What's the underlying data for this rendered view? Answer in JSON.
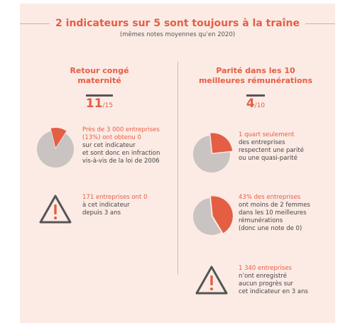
{
  "header": {
    "title": "2 indicateurs sur 5 sont toujours à la traîne",
    "subtitle": "(mêmes notes moyennes qu’en 2020)"
  },
  "left": {
    "title_line1": "Retour congé",
    "title_line2": "maternité",
    "score_value": "11",
    "score_max": "/15",
    "item1": {
      "hl1": "Près de 3 000 entreprises",
      "hl2": "(13%) ont obtenu 0",
      "l3": "sur cet indicateur",
      "l4": "et sont donc en infraction",
      "l5": "vis-à-vis de la loi de 2006",
      "pie_fraction": 0.13
    },
    "item2": {
      "hl1": "171 entreprises ont 0",
      "l2": "à cet indicateur",
      "l3": "depuis 3 ans",
      "icon": "warning-icon"
    }
  },
  "right": {
    "title_line1": "Parité dans les 10",
    "title_line2": "meilleures rémunérations",
    "score_value": "4",
    "score_max": "/10",
    "item1": {
      "hl1": "1 quart seulement",
      "l2": "des entreprises",
      "l3": "respectent une parité",
      "l4": "ou une quasi-parité",
      "pie_fraction": 0.25
    },
    "item2": {
      "hl1": "43% des entreprises",
      "l2": "ont moins de 2 femmes",
      "l3": "dans les 10 meilleures",
      "l4": "rémunérations",
      "l5": "(donc une note de 0)",
      "pie_fraction": 0.43
    },
    "item3": {
      "hl1": "1 340 entreprises",
      "l2": "n’ont enregistré",
      "l3": "aucun progrès sur",
      "l4": "cet indicateur en 3 ans",
      "icon": "warning-icon"
    }
  },
  "colors": {
    "accent": "#e45e44",
    "background": "#fcebe5",
    "pie_rest": "#c9c3c2",
    "text": "#444444"
  }
}
